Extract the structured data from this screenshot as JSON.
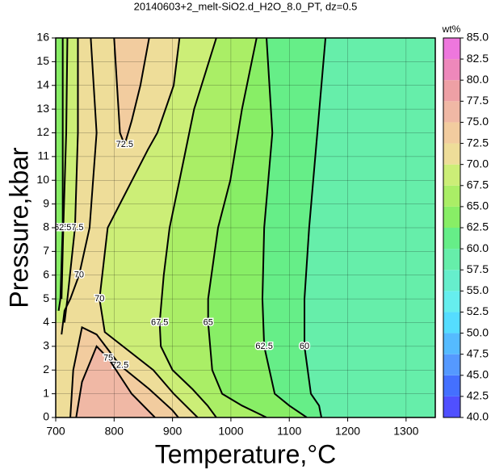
{
  "chart_data": {
    "type": "contour",
    "title": "20140603+2_melt-SiO2.d_H2O_8.0_PT, dz=0.5",
    "x_label": "Temperature,°C",
    "y_label": "Pressure,kbar",
    "colorbar_label": "wt%",
    "xlim": [
      700,
      1350
    ],
    "ylim": [
      0,
      16
    ],
    "xticks": [
      700,
      800,
      900,
      1000,
      1100,
      1200,
      1300
    ],
    "yticks": [
      0,
      1,
      2,
      3,
      4,
      5,
      6,
      7,
      8,
      9,
      10,
      11,
      12,
      13,
      14,
      15,
      16
    ],
    "grid": true,
    "zlim": [
      40,
      85
    ],
    "zticks": [
      {
        "value": 40,
        "label": "40.0"
      },
      {
        "value": 42.5,
        "label": "42.5"
      },
      {
        "value": 45,
        "label": "45.0"
      },
      {
        "value": 47.5,
        "label": "47.5"
      },
      {
        "value": 50,
        "label": "50.0"
      },
      {
        "value": 52.5,
        "label": "52.5"
      },
      {
        "value": 55,
        "label": "55.0"
      },
      {
        "value": 57.5,
        "label": "57.5"
      },
      {
        "value": 60,
        "label": "60.0"
      },
      {
        "value": 62.5,
        "label": "62.5"
      },
      {
        "value": 65,
        "label": "65.0"
      },
      {
        "value": 67.5,
        "label": "67.5"
      },
      {
        "value": 70,
        "label": "70.0"
      },
      {
        "value": 72.5,
        "label": "72.5"
      },
      {
        "value": 75,
        "label": "75.0"
      },
      {
        "value": 77.5,
        "label": "77.5"
      },
      {
        "value": 80,
        "label": "80.0"
      },
      {
        "value": 82.5,
        "label": "82.5"
      },
      {
        "value": 85,
        "label": "85.0"
      }
    ],
    "colors": [
      "#5050ff",
      "#4470ff",
      "#5599ff",
      "#55bbff",
      "#55ddff",
      "#66eeee",
      "#66eecc",
      "#66eeaa",
      "#66ee88",
      "#88ee66",
      "#aaee66",
      "#ccee77",
      "#eedd99",
      "#f2cc9f",
      "#f0b8a5",
      "#eea0a5",
      "#ee88bb",
      "#ee77dd"
    ],
    "contours": [
      {
        "level": 60,
        "x": [
          1162,
          1148,
          1134,
          1126,
          1126,
          1137,
          1151,
          1155
        ],
        "y": [
          16,
          12,
          8,
          5,
          3,
          1,
          0.5,
          0
        ]
      },
      {
        "level": 62.5,
        "x": [
          1061,
          1071,
          1057,
          1054,
          1057,
          1075,
          1100,
          1130
        ],
        "y": [
          16,
          12,
          8,
          5,
          3,
          1,
          0.5,
          0
        ]
      },
      {
        "level": 65,
        "x": [
          1044,
          1019,
          999,
          978,
          961,
          961,
          968,
          985,
          1019,
          1061
        ],
        "y": [
          16,
          13,
          10,
          8,
          5,
          4,
          2,
          1,
          0.5,
          0
        ]
      },
      {
        "level": 67.5,
        "x": [
          975,
          937,
          912,
          895,
          885,
          878,
          880,
          900,
          934,
          960,
          975
        ],
        "y": [
          16,
          13,
          10,
          8,
          6,
          4,
          3,
          2,
          1.2,
          0.5,
          0
        ]
      },
      {
        "level": 70,
        "x": [
          912,
          902,
          874,
          858,
          789,
          775,
          784,
          867,
          902,
          943
        ],
        "y": [
          16,
          14,
          12,
          11.3,
          8,
          5,
          3.6,
          2,
          1,
          0
        ]
      },
      {
        "level": 72.5,
        "x": [
          800,
          805,
          810,
          818,
          830,
          845,
          860
        ],
        "y": [
          16,
          14,
          12,
          11.5,
          12.5,
          14,
          16
        ]
      },
      {
        "level": 72.5,
        "x": [
          725,
          730,
          745,
          770,
          810,
          860,
          900,
          910
        ],
        "y": [
          0,
          2,
          3.8,
          3.5,
          2.2,
          1.2,
          0.3,
          0
        ]
      },
      {
        "level": 75,
        "x": [
          735,
          745,
          770,
          790,
          830,
          870
        ],
        "y": [
          0,
          1.5,
          3,
          2.5,
          1,
          0
        ]
      },
      {
        "level": 70,
        "x": [
          760,
          770,
          758,
          740,
          725,
          715,
          710
        ],
        "y": [
          16,
          12,
          8,
          6,
          5,
          4.5,
          3.5
        ]
      },
      {
        "level": 67.5,
        "x": [
          738,
          738,
          733,
          720,
          715
        ],
        "y": [
          16,
          12,
          8,
          5,
          4
        ]
      },
      {
        "level": 65,
        "x": [
          720,
          718,
          713,
          710
        ],
        "y": [
          16,
          12,
          8,
          5
        ]
      },
      {
        "level": 62.5,
        "x": [
          712,
          712,
          712,
          708,
          705
        ],
        "y": [
          16,
          12,
          8,
          5,
          4.5
        ]
      }
    ]
  }
}
